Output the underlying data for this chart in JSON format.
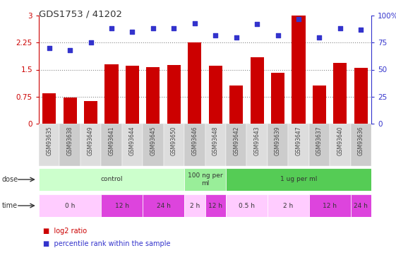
{
  "title": "GDS1753 / 41202",
  "samples": [
    "GSM93635",
    "GSM93638",
    "GSM93649",
    "GSM93641",
    "GSM93644",
    "GSM93645",
    "GSM93650",
    "GSM93646",
    "GSM93648",
    "GSM93642",
    "GSM93643",
    "GSM93639",
    "GSM93647",
    "GSM93637",
    "GSM93640",
    "GSM93636"
  ],
  "log2_ratio": [
    0.85,
    0.73,
    0.62,
    1.65,
    1.6,
    1.57,
    1.62,
    2.25,
    1.6,
    1.05,
    1.85,
    1.42,
    3.0,
    1.05,
    1.68,
    1.55
  ],
  "percentile": [
    70,
    68,
    75,
    88,
    85,
    88,
    88,
    93,
    82,
    80,
    92,
    82,
    97,
    80,
    88,
    87
  ],
  "bar_color": "#cc0000",
  "dot_color": "#3333cc",
  "ylim_left": [
    0,
    3.0
  ],
  "ylim_right": [
    0,
    100
  ],
  "yticks_left": [
    0,
    0.75,
    1.5,
    2.25,
    3.0
  ],
  "yticks_right": [
    0,
    25,
    50,
    75,
    100
  ],
  "ytick_labels_left": [
    "0",
    "0.75",
    "1.5",
    "2.25",
    "3"
  ],
  "ytick_labels_right": [
    "0",
    "25",
    "50",
    "75",
    "100%"
  ],
  "hlines": [
    0.75,
    1.5,
    2.25
  ],
  "dose_groups": [
    {
      "label": "control",
      "start": 0,
      "end": 7,
      "color": "#ccffcc"
    },
    {
      "label": "100 ng per\nml",
      "start": 7,
      "end": 9,
      "color": "#99ee99"
    },
    {
      "label": "1 ug per ml",
      "start": 9,
      "end": 16,
      "color": "#55cc55"
    }
  ],
  "time_groups": [
    {
      "label": "0 h",
      "start": 0,
      "end": 3,
      "color": "#ffccff"
    },
    {
      "label": "12 h",
      "start": 3,
      "end": 5,
      "color": "#dd44dd"
    },
    {
      "label": "24 h",
      "start": 5,
      "end": 7,
      "color": "#dd44dd"
    },
    {
      "label": "2 h",
      "start": 7,
      "end": 8,
      "color": "#ffccff"
    },
    {
      "label": "12 h",
      "start": 8,
      "end": 9,
      "color": "#dd44dd"
    },
    {
      "label": "0.5 h",
      "start": 9,
      "end": 11,
      "color": "#ffccff"
    },
    {
      "label": "2 h",
      "start": 11,
      "end": 13,
      "color": "#ffccff"
    },
    {
      "label": "12 h",
      "start": 13,
      "end": 15,
      "color": "#dd44dd"
    },
    {
      "label": "24 h",
      "start": 15,
      "end": 16,
      "color": "#dd44dd"
    }
  ],
  "legend_items": [
    {
      "label": "log2 ratio",
      "color": "#cc0000"
    },
    {
      "label": "percentile rank within the sample",
      "color": "#3333cc"
    }
  ],
  "background_color": "#ffffff",
  "xticklabel_color": "#444444",
  "xticklabel_bg": "#dddddd",
  "left_axis_color": "#cc0000",
  "right_axis_color": "#3333cc",
  "grid_color": "#888888",
  "dose_label_color": "#333333",
  "time_label_color": "#333333"
}
